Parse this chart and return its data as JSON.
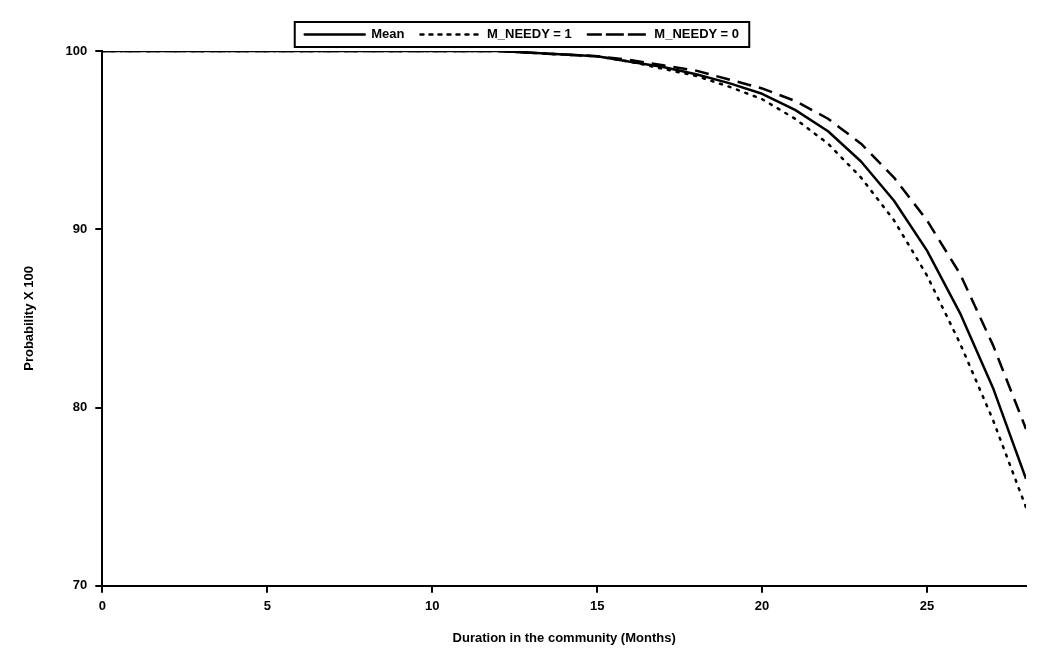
{
  "chart_data": {
    "type": "line",
    "xlabel": "Duration in the community (Months)",
    "ylabel": "Probability X 100",
    "x": [
      0,
      1,
      2,
      3,
      4,
      5,
      6,
      7,
      8,
      9,
      10,
      11,
      12,
      13,
      14,
      15,
      16,
      17,
      18,
      19,
      20,
      21,
      22,
      23,
      24,
      25,
      26,
      27,
      28
    ],
    "series": [
      {
        "name": "Mean",
        "color": "#000000",
        "line_style": "solid",
        "values": [
          100,
          100,
          100,
          100,
          100,
          100,
          100,
          100,
          100,
          100,
          100,
          100,
          100,
          99.9,
          99.8,
          99.7,
          99.4,
          99.1,
          98.7,
          98.2,
          97.6,
          96.7,
          95.5,
          93.8,
          91.6,
          88.8,
          85.3,
          81.1,
          76.0
        ]
      },
      {
        "name": "M_NEEDY = 1",
        "color": "#000000",
        "line_style": "dotted",
        "values": [
          100,
          100,
          100,
          100,
          100,
          100,
          100,
          100,
          100,
          100,
          100,
          100,
          100,
          99.9,
          99.8,
          99.7,
          99.4,
          99.0,
          98.6,
          98.0,
          97.3,
          96.2,
          94.8,
          92.9,
          90.5,
          87.4,
          83.6,
          79.3,
          74.4
        ]
      },
      {
        "name": "M_NEEDY = 0",
        "color": "#000000",
        "line_style": "dashed",
        "values": [
          100,
          100,
          100,
          100,
          100,
          100,
          100,
          100,
          100,
          100,
          100,
          100,
          100,
          99.9,
          99.8,
          99.7,
          99.5,
          99.2,
          98.9,
          98.4,
          97.9,
          97.2,
          96.2,
          94.8,
          92.9,
          90.5,
          87.5,
          83.5,
          78.8
        ]
      }
    ],
    "xlim": [
      0,
      28
    ],
    "xticks": [
      0,
      5,
      10,
      15,
      20,
      25
    ],
    "ylim": [
      70,
      100
    ],
    "yticks": [
      70,
      80,
      90,
      100
    ],
    "grid": false,
    "legend": "top",
    "marker": "none"
  }
}
